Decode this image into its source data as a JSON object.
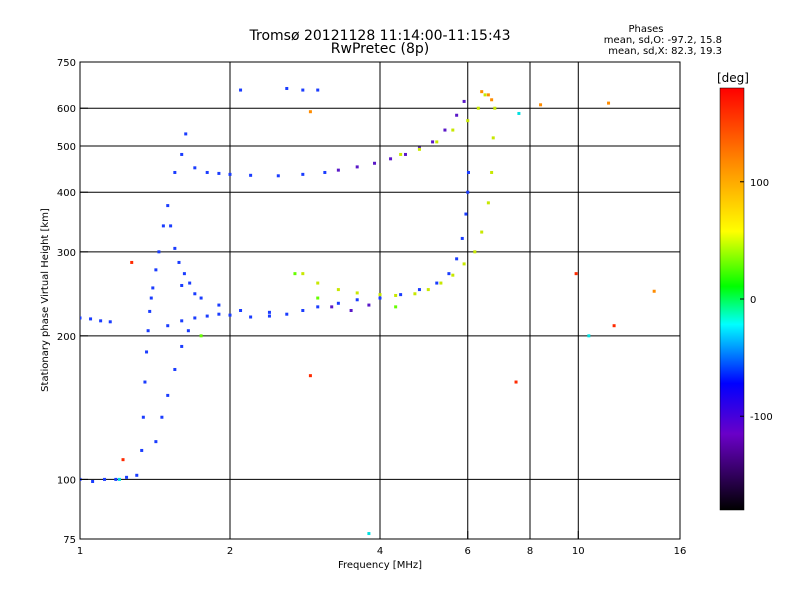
{
  "chart_data": {
    "type": "scatter",
    "title": "Tromsø 20121128 11:14:00-11:15:43",
    "subtitle": "RwPretec (8p)",
    "xlabel": "Frequency [MHz]",
    "ylabel": "Stationary phase Virtual Height [km]",
    "x_scale": "log",
    "y_scale": "log",
    "xlim": [
      1,
      16
    ],
    "ylim": [
      75,
      750
    ],
    "x_ticks": [
      1,
      2,
      4,
      6,
      8,
      10,
      16
    ],
    "y_ticks": [
      75,
      100,
      200,
      300,
      400,
      500,
      600,
      750
    ],
    "grid": true,
    "grid_x": [
      2,
      4,
      6,
      8,
      10
    ],
    "grid_y": [
      100,
      200,
      300,
      400,
      500,
      600
    ],
    "phases_info": {
      "title": "Phases",
      "line_o": "mean, sd,O: -97.2, 15.8",
      "line_x": "mean, sd,X:  82.3, 19.3"
    },
    "colorbar": {
      "label": "[deg]",
      "range": [
        -180,
        180
      ],
      "ticks": [
        -100,
        0,
        100
      ],
      "colors": [
        "#000000",
        "#6a00c8",
        "#0000ff",
        "#00ffff",
        "#00ff00",
        "#ffff00",
        "#ff8c00",
        "#ff0000"
      ]
    },
    "series": [
      {
        "color": "#1a3cff",
        "phase": -100,
        "points": [
          [
            1.0,
            100
          ],
          [
            1.06,
            99
          ],
          [
            1.12,
            100
          ],
          [
            1.18,
            100
          ],
          [
            1.24,
            101
          ],
          [
            1.3,
            102
          ],
          [
            1.0,
            218
          ],
          [
            1.05,
            217
          ],
          [
            1.1,
            215
          ],
          [
            1.15,
            214
          ],
          [
            1.33,
            115
          ],
          [
            1.34,
            135
          ],
          [
            1.35,
            160
          ],
          [
            1.36,
            185
          ],
          [
            1.37,
            205
          ],
          [
            1.38,
            225
          ],
          [
            1.39,
            240
          ],
          [
            1.4,
            252
          ],
          [
            1.42,
            275
          ],
          [
            1.44,
            300
          ],
          [
            1.47,
            340
          ],
          [
            1.5,
            375
          ],
          [
            1.52,
            340
          ],
          [
            1.55,
            305
          ],
          [
            1.58,
            285
          ],
          [
            1.62,
            270
          ],
          [
            1.66,
            258
          ],
          [
            1.7,
            245
          ],
          [
            1.42,
            120
          ],
          [
            1.46,
            135
          ],
          [
            1.5,
            150
          ],
          [
            1.55,
            170
          ],
          [
            1.6,
            190
          ],
          [
            1.65,
            205
          ],
          [
            1.5,
            210
          ],
          [
            1.6,
            215
          ],
          [
            1.7,
            218
          ],
          [
            1.8,
            220
          ],
          [
            1.9,
            222
          ],
          [
            2.0,
            221
          ],
          [
            2.2,
            219
          ],
          [
            2.4,
            220
          ],
          [
            2.6,
            222
          ],
          [
            2.8,
            226
          ],
          [
            3.0,
            230
          ],
          [
            3.3,
            234
          ],
          [
            3.6,
            238
          ],
          [
            4.0,
            240
          ],
          [
            4.4,
            244
          ],
          [
            4.8,
            250
          ],
          [
            5.2,
            258
          ],
          [
            5.5,
            270
          ],
          [
            5.7,
            290
          ],
          [
            5.85,
            320
          ],
          [
            5.95,
            360
          ],
          [
            6.0,
            400
          ],
          [
            6.02,
            440
          ],
          [
            1.6,
            255
          ],
          [
            1.75,
            240
          ],
          [
            1.9,
            232
          ],
          [
            2.1,
            226
          ],
          [
            2.4,
            224
          ],
          [
            1.55,
            440
          ],
          [
            1.6,
            480
          ],
          [
            1.63,
            530
          ],
          [
            1.7,
            450
          ],
          [
            1.8,
            440
          ],
          [
            1.9,
            438
          ],
          [
            2.0,
            436
          ],
          [
            2.2,
            434
          ],
          [
            2.5,
            433
          ],
          [
            2.8,
            436
          ],
          [
            3.1,
            440
          ],
          [
            2.1,
            655
          ],
          [
            2.6,
            660
          ],
          [
            2.8,
            655
          ],
          [
            3.0,
            655
          ]
        ]
      },
      {
        "color": "#5a18c8",
        "phase": -140,
        "points": [
          [
            3.3,
            445
          ],
          [
            3.6,
            452
          ],
          [
            3.9,
            460
          ],
          [
            4.2,
            470
          ],
          [
            4.5,
            480
          ],
          [
            4.8,
            495
          ],
          [
            5.1,
            510
          ],
          [
            5.4,
            540
          ],
          [
            5.7,
            580
          ],
          [
            5.9,
            620
          ],
          [
            3.2,
            230
          ],
          [
            3.5,
            226
          ],
          [
            3.8,
            232
          ]
        ]
      },
      {
        "color": "#c8e800",
        "phase": 90,
        "points": [
          [
            2.8,
            270
          ],
          [
            3.0,
            258
          ],
          [
            3.3,
            250
          ],
          [
            3.6,
            246
          ],
          [
            4.0,
            244
          ],
          [
            4.3,
            243
          ],
          [
            4.7,
            245
          ],
          [
            5.0,
            250
          ],
          [
            5.3,
            258
          ],
          [
            5.6,
            268
          ],
          [
            5.9,
            283
          ],
          [
            6.2,
            300
          ],
          [
            6.4,
            330
          ],
          [
            6.6,
            380
          ],
          [
            6.7,
            440
          ],
          [
            6.75,
            520
          ],
          [
            6.8,
            600
          ],
          [
            4.4,
            480
          ],
          [
            4.8,
            492
          ],
          [
            5.2,
            510
          ],
          [
            5.6,
            540
          ],
          [
            6.0,
            565
          ],
          [
            6.3,
            600
          ],
          [
            6.5,
            640
          ]
        ]
      },
      {
        "color": "#ff8c00",
        "phase": 140,
        "points": [
          [
            6.4,
            650
          ],
          [
            6.6,
            640
          ],
          [
            6.7,
            625
          ],
          [
            2.9,
            590
          ],
          [
            8.4,
            610
          ],
          [
            11.5,
            615
          ],
          [
            14.2,
            248
          ]
        ]
      },
      {
        "color": "#ff2a00",
        "phase": 170,
        "points": [
          [
            1.22,
            110
          ],
          [
            1.27,
            285
          ],
          [
            9.9,
            270
          ],
          [
            11.8,
            210
          ],
          [
            2.9,
            165
          ],
          [
            7.5,
            160
          ]
        ]
      },
      {
        "color": "#00e0e0",
        "phase": 10,
        "points": [
          [
            3.8,
            77
          ],
          [
            10.5,
            200
          ],
          [
            1.2,
            100
          ],
          [
            7.6,
            585
          ]
        ]
      },
      {
        "color": "#66ff00",
        "phase": 60,
        "points": [
          [
            1.75,
            200
          ],
          [
            2.7,
            270
          ],
          [
            4.3,
            230
          ],
          [
            3.0,
            240
          ]
        ]
      }
    ]
  }
}
